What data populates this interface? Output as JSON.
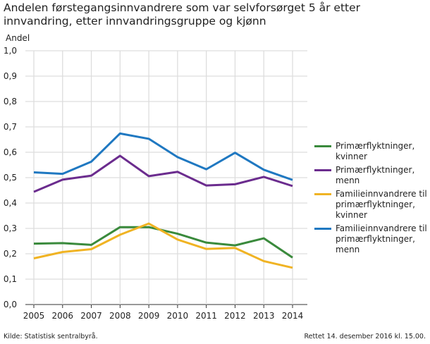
{
  "chart_data": {
    "type": "line",
    "title": "Andelen førstegangsinnvandrere som var selvforsørget 5 år etter innvandring, etter innvandringsgruppe og kjønn",
    "ylabel": "Andel",
    "xlabel": "",
    "ylim": [
      0,
      1.0
    ],
    "yticks": [
      "0,0",
      "0,1",
      "0,2",
      "0,3",
      "0,4",
      "0,5",
      "0,6",
      "0,7",
      "0,8",
      "0,9",
      "1,0"
    ],
    "categories": [
      "2005",
      "2006",
      "2007",
      "2008",
      "2009",
      "2010",
      "2011",
      "2012",
      "2013",
      "2014"
    ],
    "grid": true,
    "legend_position": "right",
    "series": [
      {
        "name": "Primærflyktninger, kvinner",
        "color": "#3a8a3c",
        "values": [
          0.24,
          0.242,
          0.235,
          0.305,
          0.305,
          0.279,
          0.244,
          0.233,
          0.261,
          0.185
        ]
      },
      {
        "name": "Primærflyktninger, menn",
        "color": "#6b2c8e",
        "values": [
          0.444,
          0.492,
          0.508,
          0.586,
          0.506,
          0.523,
          0.469,
          0.474,
          0.503,
          0.467
        ]
      },
      {
        "name": "Familieinnvandrere til primærflyktninger, kvinner",
        "color": "#f0b323",
        "values": [
          0.182,
          0.207,
          0.218,
          0.275,
          0.319,
          0.256,
          0.219,
          0.223,
          0.171,
          0.145
        ]
      },
      {
        "name": "Familieinnvandrere til primærflyktninger, menn",
        "color": "#1f78c1",
        "values": [
          0.521,
          0.515,
          0.563,
          0.674,
          0.653,
          0.581,
          0.533,
          0.598,
          0.531,
          0.491
        ]
      }
    ]
  },
  "footer": {
    "source": "Kilde: Statistisk sentralbyrå.",
    "updated": "Rettet 14. desember 2016 kl. 15.00."
  }
}
